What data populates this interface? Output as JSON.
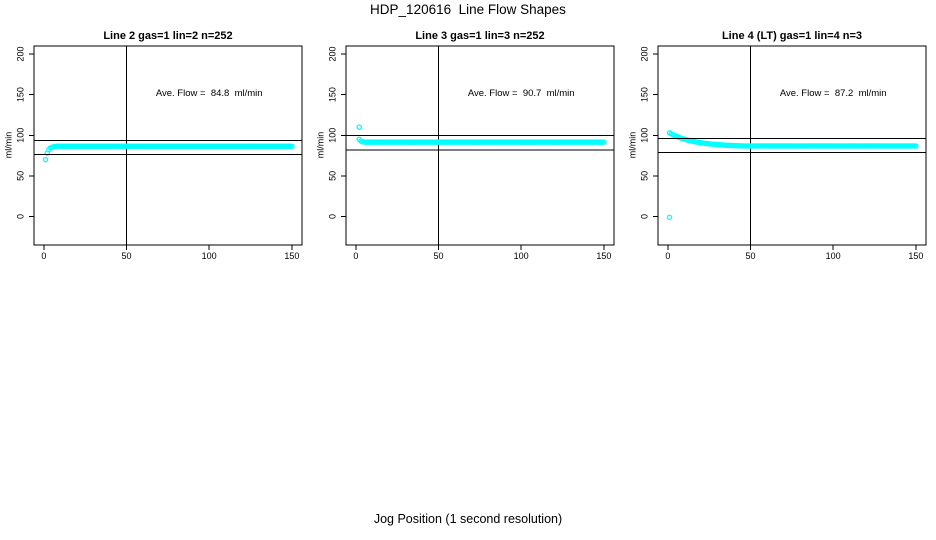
{
  "page": {
    "title": "HDP_120616  Line Flow Shapes",
    "x_axis_label": "Jog Position (1 second resolution)"
  },
  "chart_data": [
    {
      "type": "scatter",
      "title": "Line 2 gas=1 lin=2 n=252",
      "ylabel": "ml/min",
      "xlabel": "",
      "xlim": [
        0,
        150
      ],
      "ylim": [
        0,
        200
      ],
      "x_ticks": [
        0,
        50,
        100,
        150
      ],
      "y_ticks": [
        0,
        50,
        100,
        150,
        200
      ],
      "grid": false,
      "marker": {
        "shape": "open-circle",
        "color": "#00FFFF"
      },
      "ave_flow_ml_min": 84.8,
      "annotation": {
        "text": "Ave. Flow =  84.8  ml/min",
        "x": 100,
        "y": 152
      },
      "ref_lines": {
        "vertical_x": 50,
        "horizontal_y": [
          93.3,
          76.3
        ]
      },
      "series": {
        "name": "flow",
        "x_start": 1,
        "x_end": 150,
        "x_step": 1,
        "curve_keypoints": [
          [
            1,
            70
          ],
          [
            2,
            78
          ],
          [
            3,
            82.5
          ],
          [
            4,
            84.5
          ],
          [
            5,
            85.3
          ],
          [
            6,
            86
          ],
          [
            8,
            86.4
          ]
        ],
        "plateau_from": 8,
        "plateau_value": 86.5,
        "outlier_points": []
      }
    },
    {
      "type": "scatter",
      "title": "Line 3 gas=1 lin=3 n=252",
      "ylabel": "ml/min",
      "xlabel": "",
      "xlim": [
        0,
        150
      ],
      "ylim": [
        0,
        200
      ],
      "x_ticks": [
        0,
        50,
        100,
        150
      ],
      "y_ticks": [
        0,
        50,
        100,
        150,
        200
      ],
      "grid": false,
      "marker": {
        "shape": "open-circle",
        "color": "#00FFFF"
      },
      "ave_flow_ml_min": 90.7,
      "annotation": {
        "text": "Ave. Flow =  90.7  ml/min",
        "x": 100,
        "y": 152
      },
      "ref_lines": {
        "vertical_x": 50,
        "horizontal_y": [
          99.8,
          81.6
        ]
      },
      "series": {
        "name": "flow",
        "x_start": 2,
        "x_end": 150,
        "x_step": 1,
        "curve_keypoints": [
          [
            2,
            95
          ],
          [
            3,
            93
          ],
          [
            4,
            92
          ],
          [
            6,
            91.6
          ]
        ],
        "plateau_from": 6,
        "plateau_value": 91.5,
        "outlier_points": [
          [
            2,
            110
          ]
        ]
      }
    },
    {
      "type": "scatter",
      "title": "Line 4 (LT) gas=1 lin=4 n=3",
      "ylabel": "ml/min",
      "xlabel": "",
      "xlim": [
        0,
        150
      ],
      "ylim": [
        0,
        200
      ],
      "x_ticks": [
        0,
        50,
        100,
        150
      ],
      "y_ticks": [
        0,
        50,
        100,
        150,
        200
      ],
      "grid": false,
      "marker": {
        "shape": "open-circle",
        "color": "#00FFFF"
      },
      "ave_flow_ml_min": 87.2,
      "annotation": {
        "text": "Ave. Flow =  87.2  ml/min",
        "x": 100,
        "y": 152
      },
      "ref_lines": {
        "vertical_x": 50,
        "horizontal_y": [
          95.9,
          78.5
        ]
      },
      "series": {
        "name": "flow",
        "x_start": 1,
        "x_end": 150,
        "x_step": 1,
        "curve_keypoints": [
          [
            1,
            103
          ],
          [
            2,
            101.8
          ],
          [
            3,
            100.7
          ],
          [
            4,
            99.7
          ],
          [
            5,
            98.8
          ],
          [
            6,
            98
          ],
          [
            7,
            97.2
          ],
          [
            8,
            96.5
          ],
          [
            9,
            95.8
          ],
          [
            10,
            95.2
          ],
          [
            12,
            94
          ],
          [
            14,
            93
          ],
          [
            16,
            92.1
          ],
          [
            18,
            91.4
          ],
          [
            20,
            90.7
          ],
          [
            23,
            89.9
          ],
          [
            26,
            89.2
          ],
          [
            30,
            88.4
          ],
          [
            34,
            87.8
          ],
          [
            38,
            87.4
          ],
          [
            42,
            87.1
          ],
          [
            46,
            86.9
          ]
        ],
        "plateau_from": 46,
        "plateau_value": 86.8,
        "outlier_points": [
          [
            1,
            -1
          ]
        ]
      }
    }
  ]
}
